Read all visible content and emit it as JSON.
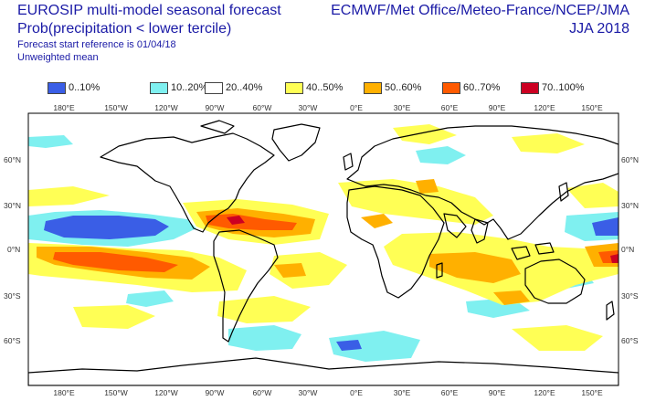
{
  "header": {
    "title_line1": "EUROSIP multi-model seasonal forecast",
    "title_line2": "Prob(precipitation < lower tercile)",
    "forecast_start": "Forecast start reference is 01/04/18",
    "mean_type": "Unweighted mean",
    "centres": "ECMWF/Met Office/Meteo-France/NCEP/JMA",
    "season": "JJA 2018"
  },
  "legend": [
    {
      "label": "0..10%",
      "color": "#3a5ee6"
    },
    {
      "label": "10..20%",
      "color": "#7ff0f0"
    },
    {
      "label": "20..40%",
      "color": "#ffffff"
    },
    {
      "label": "40..50%",
      "color": "#ffff55"
    },
    {
      "label": "50..60%",
      "color": "#ffb000"
    },
    {
      "label": "60..70%",
      "color": "#ff5a00"
    },
    {
      "label": "70..100%",
      "color": "#cc0022"
    }
  ],
  "map": {
    "lon_labels": [
      "180°E",
      "150°W",
      "120°W",
      "90°W",
      "60°W",
      "30°W",
      "0°E",
      "30°E",
      "60°E",
      "90°E",
      "120°E",
      "150°E"
    ],
    "lat_labels": [
      "60°N",
      "30°N",
      "0°N",
      "30°S",
      "60°S"
    ]
  }
}
